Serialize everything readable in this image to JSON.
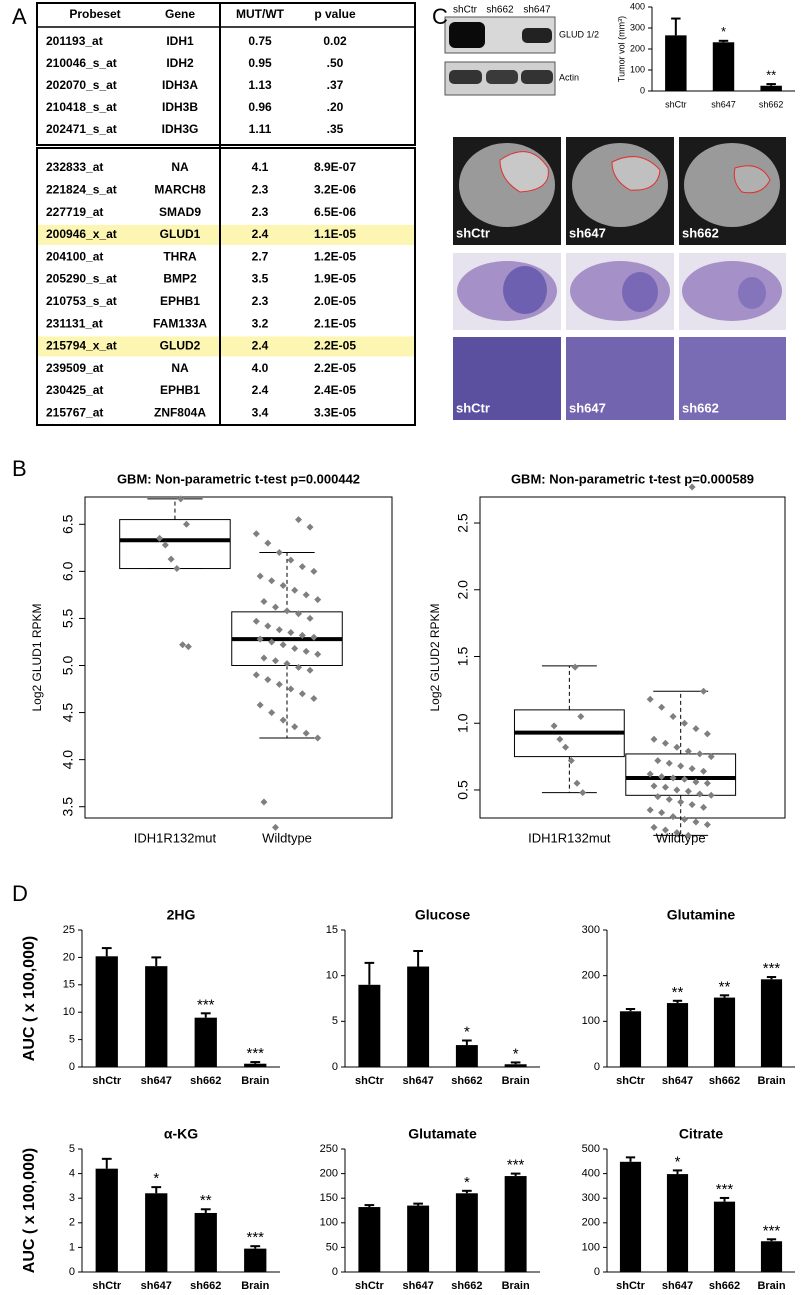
{
  "panel_labels": [
    "A",
    "B",
    "C",
    "D"
  ],
  "table": {
    "header": [
      "Probeset",
      "Gene",
      "MUT/WT",
      "p value"
    ],
    "highlight_color": "#fdf6b2",
    "block1": [
      {
        "cells": [
          "201193_at",
          "IDH1",
          "0.75",
          "0.02"
        ],
        "highlight": false
      },
      {
        "cells": [
          "210046_s_at",
          "IDH2",
          "0.95",
          ".50"
        ],
        "highlight": false
      },
      {
        "cells": [
          "202070_s_at",
          "IDH3A",
          "1.13",
          ".37"
        ],
        "highlight": false
      },
      {
        "cells": [
          "210418_s_at",
          "IDH3B",
          "0.96",
          ".20"
        ],
        "highlight": false
      },
      {
        "cells": [
          "202471_s_at",
          "IDH3G",
          "1.11",
          ".35"
        ],
        "highlight": false
      }
    ],
    "block2": [
      {
        "cells": [
          "232833_at",
          "NA",
          "4.1",
          "8.9E-07"
        ],
        "highlight": false
      },
      {
        "cells": [
          "221824_s_at",
          "MARCH8",
          "2.3",
          "3.2E-06"
        ],
        "highlight": false
      },
      {
        "cells": [
          "227719_at",
          "SMAD9",
          "2.3",
          "6.5E-06"
        ],
        "highlight": false
      },
      {
        "cells": [
          "200946_x_at",
          "GLUD1",
          "2.4",
          "1.1E-05"
        ],
        "highlight": true
      },
      {
        "cells": [
          "204100_at",
          "THRA",
          "2.7",
          "1.2E-05"
        ],
        "highlight": false
      },
      {
        "cells": [
          "205290_s_at",
          "BMP2",
          "3.5",
          "1.9E-05"
        ],
        "highlight": false
      },
      {
        "cells": [
          "210753_s_at",
          "EPHB1",
          "2.3",
          "2.0E-05"
        ],
        "highlight": false
      },
      {
        "cells": [
          "231131_at",
          "FAM133A",
          "3.2",
          "2.1E-05"
        ],
        "highlight": false
      },
      {
        "cells": [
          "215794_x_at",
          "GLUD2",
          "2.4",
          "2.2E-05"
        ],
        "highlight": true
      },
      {
        "cells": [
          "239509_at",
          "NA",
          "4.0",
          "2.2E-05"
        ],
        "highlight": false
      },
      {
        "cells": [
          "230425_at",
          "EPHB1",
          "2.4",
          "2.4E-05"
        ],
        "highlight": false
      },
      {
        "cells": [
          "215767_at",
          "ZNF804A",
          "3.4",
          "3.3E-05"
        ],
        "highlight": false
      }
    ]
  },
  "western_blot": {
    "lanes": [
      "shCtr",
      "sh662",
      "sh647"
    ],
    "bands": [
      "GLUD 1/2",
      "Actin"
    ]
  },
  "mri_labels": [
    "shCtr",
    "sh647",
    "sh662"
  ],
  "histology_labels": [
    "shCtr",
    "sh647",
    "sh662"
  ],
  "chart_data": [
    {
      "type": "bar",
      "ylabel": "Tumor vol (mm³)",
      "categories": [
        "shCtr",
        "sh647",
        "sh662"
      ],
      "values": [
        265,
        232,
        25
      ],
      "errors": [
        80,
        7,
        8
      ],
      "annotations": [
        null,
        "*",
        "**"
      ],
      "color": "#000000",
      "ylim": [
        0,
        400
      ],
      "yticks": [
        0,
        100,
        200,
        300,
        400
      ]
    },
    {
      "type": "box",
      "title": "GBM: Non-parametric t-test p=0.000442",
      "ylabel": "Log2 GLUD1 RPKM",
      "categories": [
        "IDH1R132mut",
        "Wildtype"
      ],
      "point_color": "#7f7f7f",
      "ylim": [
        3.38,
        6.79
      ],
      "yticks": [
        3.5,
        {
          "value": 4,
          "label": "4.0"
        },
        4.5,
        {
          "value": 5,
          "label": "5.0"
        },
        5.5,
        {
          "value": 6,
          "label": "6.0"
        },
        6.5
      ],
      "boxes": [
        {
          "whislo": 6.03,
          "q1": 6.03,
          "med": 6.33,
          "q3": 6.55,
          "whishi": 6.77
        },
        {
          "whislo": 4.23,
          "q1": 5.0,
          "med": 5.28,
          "q3": 5.57,
          "whishi": 6.2
        }
      ],
      "points": [
        [
          6.77,
          6.5,
          6.35,
          6.28,
          6.13,
          6.03,
          5.22,
          5.2
        ],
        [
          6.55,
          6.47,
          6.4,
          6.3,
          6.2,
          6.12,
          6.05,
          6.0,
          5.95,
          5.9,
          5.85,
          5.8,
          5.75,
          5.7,
          5.68,
          5.62,
          5.58,
          5.55,
          5.5,
          5.47,
          5.42,
          5.38,
          5.35,
          5.32,
          5.3,
          5.28,
          5.25,
          5.22,
          5.18,
          5.15,
          5.12,
          5.08,
          5.05,
          5.02,
          4.98,
          4.95,
          4.9,
          4.85,
          4.8,
          4.75,
          4.7,
          4.65,
          4.58,
          4.5,
          4.42,
          4.35,
          4.28,
          4.23,
          3.55,
          3.28
        ]
      ]
    },
    {
      "type": "box",
      "title": "GBM: Non-parametric t-test p=0.000589",
      "ylabel": "Log2 GLUD2 RPKM",
      "categories": [
        "IDH1R132mut",
        "Wildtype"
      ],
      "point_color": "#7f7f7f",
      "ylim": [
        0.29,
        2.695
      ],
      "yticks": [
        0.5,
        {
          "value": 1,
          "label": "1.0"
        },
        1.5,
        {
          "value": 2,
          "label": "2.0"
        },
        2.5
      ],
      "boxes": [
        {
          "whislo": 0.48,
          "q1": 0.75,
          "med": 0.93,
          "q3": 1.1,
          "whishi": 1.43
        },
        {
          "whislo": 0.16,
          "q1": 0.46,
          "med": 0.59,
          "q3": 0.77,
          "whishi": 1.24
        }
      ],
      "points": [
        [
          1.42,
          1.05,
          0.98,
          0.88,
          0.82,
          0.72,
          0.55,
          0.48
        ],
        [
          2.77,
          1.24,
          1.18,
          1.12,
          1.05,
          1.0,
          0.96,
          0.92,
          0.88,
          0.85,
          0.82,
          0.79,
          0.77,
          0.75,
          0.72,
          0.7,
          0.68,
          0.66,
          0.64,
          0.62,
          0.6,
          0.59,
          0.58,
          0.56,
          0.55,
          0.53,
          0.52,
          0.5,
          0.49,
          0.47,
          0.46,
          0.45,
          0.43,
          0.41,
          0.39,
          0.37,
          0.35,
          0.33,
          0.3,
          0.28,
          0.26,
          0.24,
          0.22,
          0.2,
          0.18,
          0.16
        ]
      ]
    },
    {
      "type": "bar",
      "title": "2HG",
      "ylabel": "AUC ( x 100,000)",
      "categories": [
        "shCtr",
        "sh647",
        "sh662",
        "Brain"
      ],
      "values": [
        20.2,
        18.4,
        9,
        0.6
      ],
      "errors": [
        1.5,
        1.6,
        0.8,
        0.3
      ],
      "annotations": [
        null,
        null,
        "***",
        "***"
      ],
      "color": "#000000",
      "ylim": [
        0,
        25
      ],
      "yticks": [
        0,
        5,
        10,
        15,
        20,
        25
      ]
    },
    {
      "type": "bar",
      "title": "Glucose",
      "categories": [
        "shCtr",
        "sh647",
        "sh662",
        "Brain"
      ],
      "values": [
        9,
        11,
        2.4,
        0.3
      ],
      "errors": [
        2.4,
        1.7,
        0.5,
        0.2
      ],
      "annotations": [
        null,
        null,
        "*",
        "*"
      ],
      "color": "#000000",
      "ylim": [
        0,
        15
      ],
      "yticks": [
        0,
        5,
        10,
        15
      ]
    },
    {
      "type": "bar",
      "title": "Glutamine",
      "categories": [
        "shCtr",
        "sh647",
        "sh662",
        "Brain"
      ],
      "values": [
        122,
        140,
        152,
        192
      ],
      "errors": [
        5,
        5,
        5,
        5
      ],
      "annotations": [
        null,
        "**",
        "**",
        "***"
      ],
      "color": "#000000",
      "ylim": [
        0,
        300
      ],
      "yticks": [
        0,
        100,
        200,
        300
      ]
    },
    {
      "type": "bar",
      "title": "α-KG",
      "ylabel": "AUC ( x 100,000)",
      "categories": [
        "shCtr",
        "sh647",
        "sh662",
        "Brain"
      ],
      "values": [
        4.2,
        3.2,
        2.4,
        0.95
      ],
      "errors": [
        0.4,
        0.25,
        0.15,
        0.1
      ],
      "annotations": [
        null,
        "*",
        "**",
        "***"
      ],
      "color": "#000000",
      "ylim": [
        0,
        5
      ],
      "yticks": [
        0,
        1,
        2,
        3,
        4,
        5
      ]
    },
    {
      "type": "bar",
      "title": "Glutamate",
      "categories": [
        "shCtr",
        "sh647",
        "sh662",
        "Brain"
      ],
      "values": [
        132,
        135,
        160,
        195
      ],
      "errors": [
        4,
        4,
        5,
        5
      ],
      "annotations": [
        null,
        null,
        "*",
        "***"
      ],
      "color": "#000000",
      "ylim": [
        0,
        250
      ],
      "yticks": [
        0,
        50,
        100,
        150,
        200,
        250
      ]
    },
    {
      "type": "bar",
      "title": "Citrate",
      "categories": [
        "shCtr",
        "sh647",
        "sh662",
        "Brain"
      ],
      "values": [
        448,
        398,
        286,
        125
      ],
      "errors": [
        18,
        15,
        15,
        8
      ],
      "annotations": [
        null,
        "*",
        "***",
        "***"
      ],
      "color": "#000000",
      "ylim": [
        0,
        500
      ],
      "yticks": [
        0,
        100,
        200,
        300,
        400,
        500
      ]
    }
  ]
}
